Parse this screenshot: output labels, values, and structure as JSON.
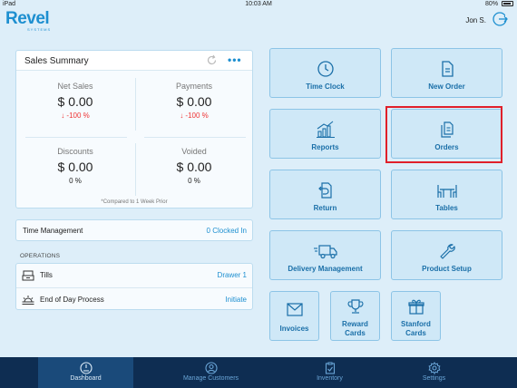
{
  "status_bar": {
    "device": "iPad",
    "time": "10:03 AM",
    "battery": "80%"
  },
  "header": {
    "logo": "Revel",
    "logo_sub": "SYSTEMS",
    "user": "Jon S."
  },
  "sales_summary": {
    "title": "Sales Summary",
    "metrics": [
      {
        "label": "Net Sales",
        "value": "$ 0.00",
        "change": "↓ -100 %"
      },
      {
        "label": "Payments",
        "value": "$ 0.00",
        "change": "↓ -100 %"
      },
      {
        "label": "Discounts",
        "value": "$ 0.00",
        "change": "0 %"
      },
      {
        "label": "Voided",
        "value": "$ 0.00",
        "change": "0 %"
      }
    ],
    "compare_note": "*Compared to 1 Week Prior"
  },
  "time_management": {
    "label": "Time Management",
    "value": "0 Clocked In"
  },
  "operations": {
    "title": "OPERATIONS",
    "rows": [
      {
        "label": "Tills",
        "value": "Drawer 1"
      },
      {
        "label": "End of Day Process",
        "value": "Initiate"
      }
    ]
  },
  "tiles": {
    "time_clock": "Time Clock",
    "new_order": "New Order",
    "reports": "Reports",
    "orders": "Orders",
    "return": "Return",
    "tables": "Tables",
    "delivery": "Delivery Management",
    "product_setup": "Product Setup",
    "invoices": "Invoices",
    "reward_cards_1": "Reward",
    "reward_cards_2": "Cards",
    "stanford_cards_1": "Stanford",
    "stanford_cards_2": "Cards"
  },
  "nav": {
    "dashboard": "Dashboard",
    "manage_customers": "Manage Customers",
    "inventory": "Inventory",
    "settings": "Settings"
  },
  "colors": {
    "accent": "#1d8fd0",
    "negative": "#e33333",
    "nav_bg": "#0e2d52",
    "highlight": "#e0202a"
  }
}
